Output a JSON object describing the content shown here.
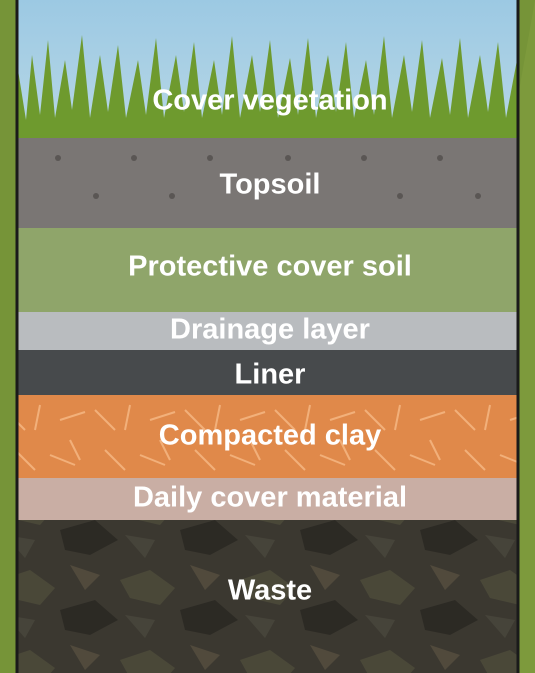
{
  "layers": [
    {
      "label": "Cover vegetation"
    },
    {
      "label": "Topsoil"
    },
    {
      "label": "Protective cover soil"
    },
    {
      "label": "Drainage layer"
    },
    {
      "label": "Liner"
    },
    {
      "label": "Compacted clay"
    },
    {
      "label": "Daily cover material"
    },
    {
      "label": "Waste"
    }
  ]
}
